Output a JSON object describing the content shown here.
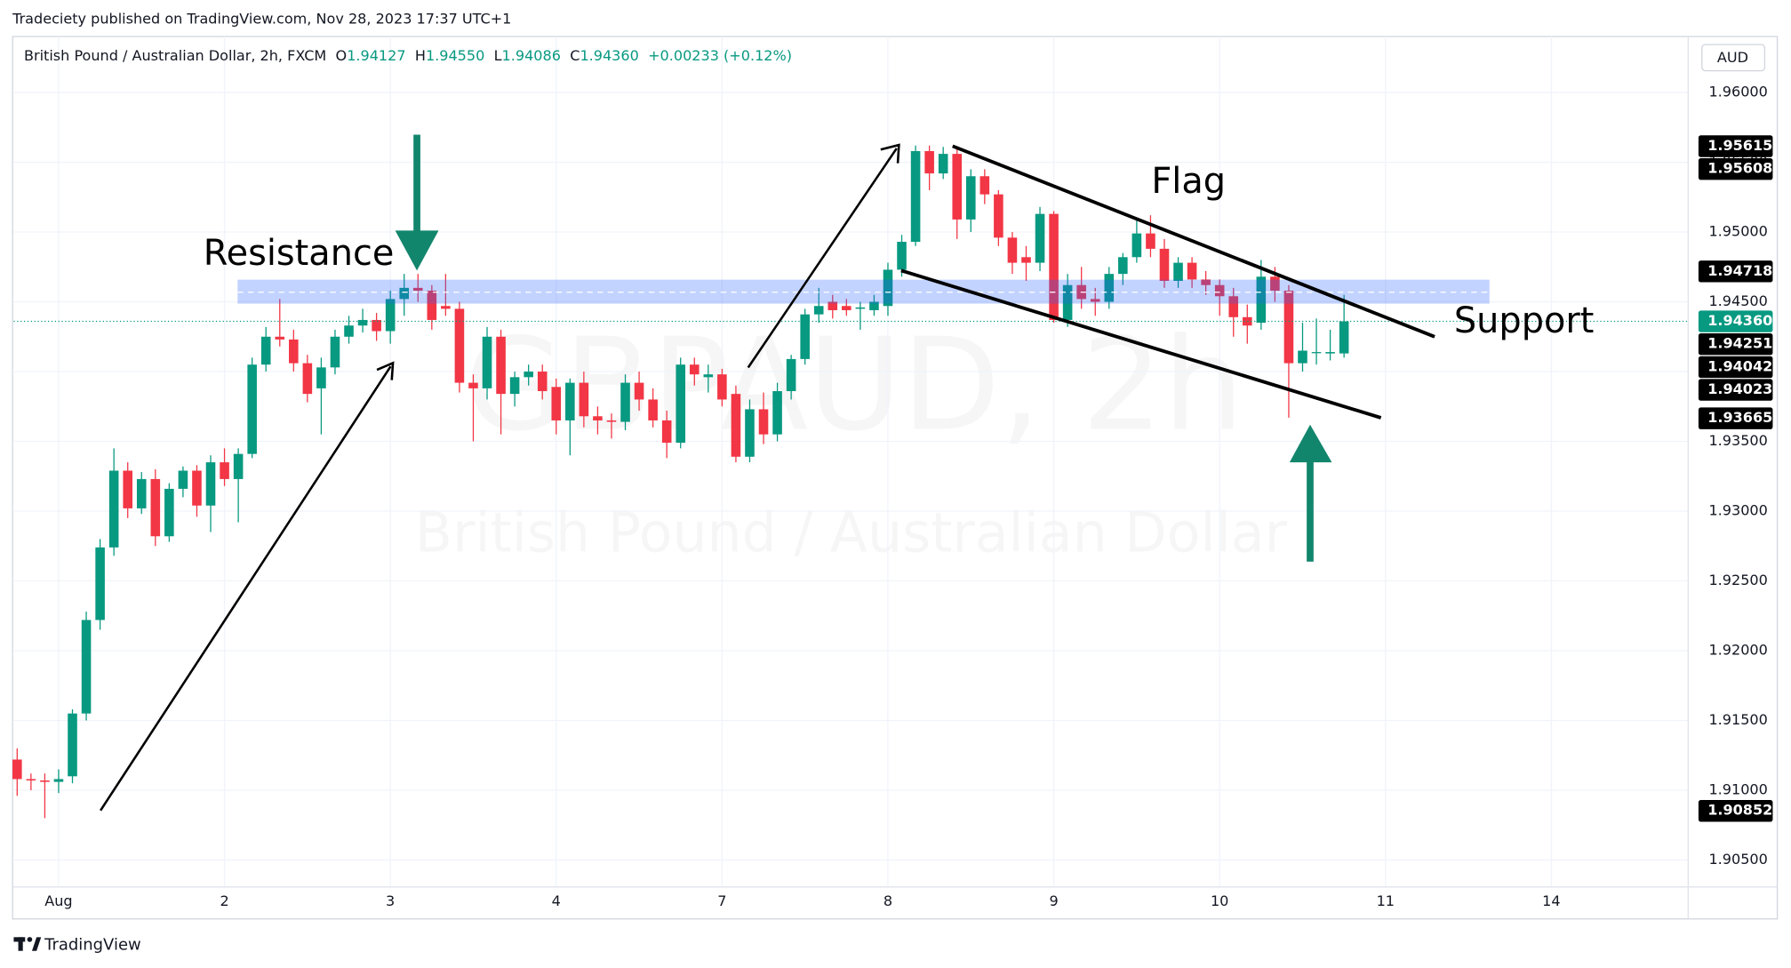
{
  "published": "Tradeciety published on TradingView.com, Nov 28, 2023 17:37 UTC+1",
  "brand": "TradingView",
  "chart_data": {
    "type": "candlestick",
    "title": "British Pound / Australian Dollar, 2h, FXCM",
    "ohlc": [
      {
        "key": "O",
        "value": "1.94127"
      },
      {
        "key": "H",
        "value": "1.94550"
      },
      {
        "key": "L",
        "value": "1.94086"
      },
      {
        "key": "C",
        "value": "1.94360"
      }
    ],
    "change": "+0.00233 (+0.12%)",
    "currency": "AUD",
    "watermark": "GBPAUD, 2h",
    "watermark_subtitle": "British Pound / Australian Dollar",
    "annotations": [
      "Resistance",
      "Flag",
      "Support"
    ],
    "up_color": "#089981",
    "down_color": "#f23645",
    "grid": true,
    "categories": [
      null,
      null,
      null,
      null,
      null,
      null,
      null,
      null,
      null,
      null,
      null,
      null,
      null,
      null,
      null,
      null,
      null,
      null,
      null,
      null,
      null,
      null,
      null,
      null,
      null,
      null,
      null,
      null,
      null,
      null,
      null,
      null,
      null,
      null,
      null,
      null,
      null,
      null,
      null,
      null,
      null,
      null,
      null,
      null,
      null,
      null,
      null,
      null,
      null,
      null,
      null,
      null,
      null,
      null,
      null,
      null,
      null,
      null,
      null,
      null,
      null,
      null,
      null,
      null,
      null,
      null,
      null,
      null,
      null,
      null,
      null,
      null,
      null,
      null,
      null,
      null,
      null,
      null,
      null,
      null,
      null,
      null,
      null,
      null,
      null,
      null,
      null,
      null,
      null,
      null,
      null,
      null,
      null,
      null,
      null,
      null,
      null
    ],
    "open": [
      1.9122,
      1.9108,
      1.9107,
      1.9106,
      1.911,
      1.9155,
      1.9222,
      1.9274,
      1.9329,
      1.9302,
      1.9323,
      1.9282,
      1.9316,
      1.9329,
      1.9304,
      1.9335,
      1.9323,
      1.9341,
      1.9405,
      1.9425,
      1.9423,
      1.9406,
      1.9388,
      1.9403,
      1.9425,
      1.9433,
      1.9437,
      1.9429,
      1.9452,
      1.946,
      1.9458,
      1.9447,
      1.9445,
      1.9392,
      1.9388,
      1.9425,
      1.9384,
      1.9396,
      1.94,
      1.9389,
      1.9365,
      1.9392,
      1.9368,
      1.9365,
      1.9364,
      1.9392,
      1.938,
      1.9365,
      1.9349,
      1.9405,
      1.9396,
      1.9398,
      1.9384,
      1.9339,
      1.9373,
      1.9355,
      1.9386,
      1.9409,
      1.9441,
      1.945,
      1.9447,
      1.9445,
      1.9444,
      1.9447,
      1.9473,
      1.9493,
      1.9558,
      1.9542,
      1.9556,
      1.9509,
      1.954,
      1.9527,
      1.9496,
      1.9482,
      1.9478,
      1.9513,
      1.9437,
      1.9462,
      1.9452,
      1.945,
      1.947,
      1.9482,
      1.9499,
      1.9488,
      1.9465,
      1.9478,
      1.9466,
      1.9462,
      1.9454,
      1.9439,
      1.9435,
      1.9468,
      1.9458,
      1.9406,
      1.9414,
      1.9413,
      1.9413
    ],
    "high": [
      1.913,
      1.9112,
      1.9112,
      1.9115,
      1.9158,
      1.9228,
      1.928,
      1.9345,
      1.9335,
      1.9328,
      1.933,
      1.932,
      1.9332,
      1.9333,
      1.934,
      1.9345,
      1.9345,
      1.941,
      1.9432,
      1.9452,
      1.943,
      1.9412,
      1.941,
      1.943,
      1.944,
      1.9445,
      1.9442,
      1.9458,
      1.947,
      1.947,
      1.9462,
      1.947,
      1.945,
      1.9398,
      1.9432,
      1.943,
      1.94,
      1.9405,
      1.9405,
      1.9395,
      1.9395,
      1.94,
      1.9375,
      1.937,
      1.9398,
      1.94,
      1.9388,
      1.9372,
      1.941,
      1.941,
      1.9405,
      1.9402,
      1.939,
      1.938,
      1.9385,
      1.9392,
      1.9412,
      1.9445,
      1.946,
      1.9455,
      1.9452,
      1.945,
      1.9455,
      1.9478,
      1.9498,
      1.9562,
      1.9562,
      1.9561,
      1.956,
      1.9545,
      1.9545,
      1.953,
      1.95,
      1.949,
      1.9518,
      1.9515,
      1.947,
      1.9475,
      1.946,
      1.9475,
      1.9485,
      1.951,
      1.9512,
      1.9495,
      1.9482,
      1.9482,
      1.9472,
      1.9466,
      1.946,
      1.9448,
      1.948,
      1.9475,
      1.9462,
      1.9435,
      1.9438,
      1.943,
      1.9455
    ],
    "low": [
      1.9096,
      1.91,
      1.908,
      1.9098,
      1.9105,
      1.915,
      1.9215,
      1.9268,
      1.9295,
      1.9298,
      1.9275,
      1.9278,
      1.931,
      1.9296,
      1.9285,
      1.9318,
      1.9292,
      1.9338,
      1.94,
      1.9418,
      1.94,
      1.9378,
      1.9355,
      1.9398,
      1.942,
      1.9428,
      1.9422,
      1.942,
      1.944,
      1.945,
      1.943,
      1.944,
      1.9385,
      1.935,
      1.938,
      1.9355,
      1.9375,
      1.939,
      1.938,
      1.9355,
      1.934,
      1.936,
      1.9355,
      1.9352,
      1.9358,
      1.9372,
      1.936,
      1.9338,
      1.9345,
      1.939,
      1.9385,
      1.9375,
      1.9335,
      1.9335,
      1.9348,
      1.935,
      1.938,
      1.9405,
      1.9435,
      1.9438,
      1.944,
      1.943,
      1.944,
      1.944,
      1.9468,
      1.949,
      1.953,
      1.9538,
      1.9495,
      1.95,
      1.952,
      1.949,
      1.947,
      1.9465,
      1.9472,
      1.9435,
      1.9432,
      1.9445,
      1.944,
      1.9445,
      1.9462,
      1.9478,
      1.9482,
      1.946,
      1.946,
      1.946,
      1.9455,
      1.944,
      1.9425,
      1.942,
      1.943,
      1.945,
      1.9367,
      1.94,
      1.9405,
      1.9408,
      1.941
    ],
    "close": [
      1.9108,
      1.9107,
      1.9106,
      1.9108,
      1.9155,
      1.9222,
      1.9274,
      1.9329,
      1.9302,
      1.9323,
      1.9282,
      1.9316,
      1.9329,
      1.9304,
      1.9335,
      1.9323,
      1.9341,
      1.9405,
      1.9425,
      1.9423,
      1.9406,
      1.9384,
      1.9403,
      1.9425,
      1.9433,
      1.9437,
      1.9429,
      1.9452,
      1.946,
      1.9458,
      1.9437,
      1.9445,
      1.9392,
      1.9388,
      1.9425,
      1.9384,
      1.9396,
      1.94,
      1.9386,
      1.9365,
      1.9392,
      1.9368,
      1.9365,
      1.9364,
      1.9392,
      1.938,
      1.9365,
      1.9349,
      1.9405,
      1.9398,
      1.9398,
      1.938,
      1.9339,
      1.9373,
      1.9355,
      1.9386,
      1.9409,
      1.9441,
      1.9447,
      1.9444,
      1.9444,
      1.9446,
      1.945,
      1.9473,
      1.9493,
      1.9558,
      1.9542,
      1.9556,
      1.9509,
      1.954,
      1.9527,
      1.9496,
      1.9478,
      1.9478,
      1.9513,
      1.9437,
      1.9462,
      1.9452,
      1.945,
      1.947,
      1.9482,
      1.9499,
      1.9488,
      1.9465,
      1.9478,
      1.9466,
      1.9462,
      1.9454,
      1.9439,
      1.9433,
      1.9468,
      1.9458,
      1.9406,
      1.9415,
      1.9414,
      1.9414,
      1.9436
    ],
    "xlim": [
      -0.25,
      120.9
    ],
    "xticks": [
      {
        "value": 3,
        "label": "Aug"
      },
      {
        "value": 15,
        "label": "2"
      },
      {
        "value": 27,
        "label": "3"
      },
      {
        "value": 39,
        "label": "4"
      },
      {
        "value": 51,
        "label": "7"
      },
      {
        "value": 63,
        "label": "8"
      },
      {
        "value": 75,
        "label": "9"
      },
      {
        "value": 87,
        "label": "10"
      },
      {
        "value": 99,
        "label": "11"
      },
      {
        "value": 111,
        "label": "14"
      }
    ],
    "ylim": [
      1.90307,
      1.96401
    ],
    "yticks": [
      {
        "value": 1.905,
        "label": "1.90500"
      },
      {
        "value": 1.91,
        "label": "1.91000"
      },
      {
        "value": 1.915,
        "label": "1.91500"
      },
      {
        "value": 1.92,
        "label": "1.92000"
      },
      {
        "value": 1.925,
        "label": "1.92500"
      },
      {
        "value": 1.93,
        "label": "1.93000"
      },
      {
        "value": 1.935,
        "label": "1.93500"
      },
      {
        "value": 1.94,
        "label": "1.94000"
      },
      {
        "value": 1.945,
        "label": "1.94500"
      },
      {
        "value": 1.95,
        "label": "1.95000"
      },
      {
        "value": 1.955,
        "label": "1.95500"
      },
      {
        "value": 1.96,
        "label": "1.96000"
      }
    ],
    "price_labels": [
      {
        "value": 1.95615,
        "color": "#000000"
      },
      {
        "value": 1.95608,
        "color": "#000000"
      },
      {
        "value": 1.94718,
        "color": "#000000"
      },
      {
        "value": 1.9436,
        "label": "1.94360",
        "color": "#089981"
      },
      {
        "value": 1.94251,
        "color": "#000000"
      },
      {
        "value": 1.94042,
        "color": "#000000"
      },
      {
        "value": 1.94023,
        "color": "#000000"
      },
      {
        "value": 1.93665,
        "color": "#000000"
      },
      {
        "value": 1.90852,
        "color": "#000000"
      }
    ]
  }
}
